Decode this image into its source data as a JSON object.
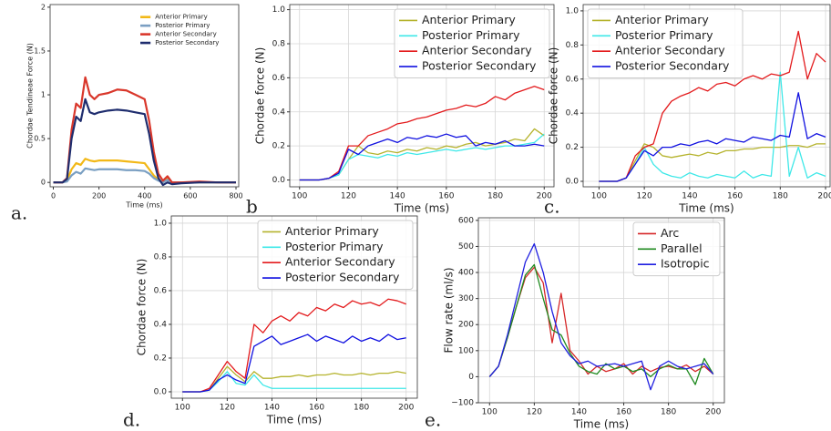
{
  "chart_data": [
    {
      "type": "line",
      "label": "a.",
      "xlabel": "Time (ms)",
      "ylabel": "Chordae Tendineae Force (N)",
      "xlim": [
        -14,
        812
      ],
      "ylim": [
        -0.05,
        2.03
      ],
      "xticks": [
        0,
        200,
        400,
        600,
        800
      ],
      "yticks": [
        0,
        0.5,
        1,
        1.5,
        2
      ],
      "grid": false,
      "legend": "upper right",
      "x": [
        0,
        40,
        60,
        80,
        100,
        120,
        140,
        160,
        180,
        200,
        240,
        280,
        320,
        360,
        400,
        420,
        440,
        460,
        480,
        500,
        520,
        560,
        640,
        720,
        800
      ],
      "series": [
        {
          "name": "Anterior Primary",
          "color": "#f2b817",
          "values": [
            0,
            0,
            0.02,
            0.15,
            0.22,
            0.2,
            0.27,
            0.25,
            0.24,
            0.25,
            0.25,
            0.25,
            0.24,
            0.23,
            0.22,
            0.15,
            0.08,
            0.03,
            0,
            0.05,
            0,
            0,
            0,
            0,
            0
          ]
        },
        {
          "name": "Posterior Primary",
          "color": "#7a9fc2",
          "values": [
            0,
            0,
            0.01,
            0.08,
            0.12,
            0.1,
            0.16,
            0.15,
            0.14,
            0.15,
            0.15,
            0.15,
            0.14,
            0.14,
            0.13,
            0.1,
            0.05,
            0.02,
            0,
            0.03,
            0,
            0,
            0,
            0,
            0
          ]
        },
        {
          "name": "Anterior Secondary",
          "color": "#d9372b",
          "values": [
            0,
            0,
            0.05,
            0.6,
            0.9,
            0.85,
            1.2,
            1.0,
            0.95,
            1.0,
            1.02,
            1.06,
            1.05,
            1.0,
            0.95,
            0.7,
            0.35,
            0.1,
            0.02,
            0.07,
            0,
            0,
            0.01,
            0,
            0
          ]
        },
        {
          "name": "Posterior Secondary",
          "color": "#1f2d6e",
          "values": [
            0,
            0,
            0.04,
            0.5,
            0.75,
            0.7,
            0.95,
            0.8,
            0.78,
            0.8,
            0.82,
            0.83,
            0.82,
            0.8,
            0.78,
            0.55,
            0.25,
            0.05,
            -0.03,
            0,
            -0.02,
            -0.01,
            0,
            0,
            0
          ]
        }
      ]
    },
    {
      "type": "line",
      "label": "b",
      "xlabel": "Time (ms)",
      "ylabel": "Chordae force (N)",
      "xlim": [
        96,
        204
      ],
      "ylim": [
        -0.04,
        1.03
      ],
      "xticks": [
        100,
        120,
        140,
        160,
        180,
        200
      ],
      "yticks": [
        {
          "value": 0,
          "label": "0.0"
        },
        0.2,
        0.4,
        0.6,
        0.8,
        {
          "value": 1,
          "label": "1.0"
        }
      ],
      "grid": true,
      "legend": "upper right",
      "x": [
        100,
        104,
        108,
        112,
        116,
        120,
        124,
        128,
        132,
        136,
        140,
        144,
        148,
        152,
        156,
        160,
        164,
        168,
        172,
        176,
        180,
        184,
        188,
        192,
        196,
        200
      ],
      "series": [
        {
          "name": "Anterior Primary",
          "color": "#b5b32d",
          "values": [
            0,
            0,
            0,
            0.01,
            0.03,
            0.12,
            0.2,
            0.16,
            0.15,
            0.17,
            0.16,
            0.18,
            0.17,
            0.19,
            0.18,
            0.2,
            0.19,
            0.21,
            0.22,
            0.2,
            0.21,
            0.22,
            0.24,
            0.23,
            0.3,
            0.26
          ]
        },
        {
          "name": "Posterior Primary",
          "color": "#3ee8e8",
          "values": [
            0,
            0,
            0,
            0.01,
            0.03,
            0.12,
            0.15,
            0.14,
            0.13,
            0.15,
            0.14,
            0.16,
            0.15,
            0.16,
            0.17,
            0.18,
            0.17,
            0.18,
            0.19,
            0.18,
            0.19,
            0.2,
            0.2,
            0.21,
            0.22,
            0.27
          ]
        },
        {
          "name": "Anterior Secondary",
          "color": "#e31a1c",
          "values": [
            0,
            0,
            0,
            0.01,
            0.05,
            0.2,
            0.2,
            0.26,
            0.28,
            0.3,
            0.33,
            0.34,
            0.36,
            0.37,
            0.39,
            0.41,
            0.42,
            0.44,
            0.43,
            0.45,
            0.49,
            0.47,
            0.51,
            0.53,
            0.55,
            0.53
          ]
        },
        {
          "name": "Posterior Secondary",
          "color": "#1010e0",
          "values": [
            0,
            0,
            0,
            0.01,
            0.04,
            0.18,
            0.15,
            0.2,
            0.22,
            0.24,
            0.22,
            0.25,
            0.24,
            0.26,
            0.25,
            0.27,
            0.25,
            0.26,
            0.2,
            0.22,
            0.21,
            0.23,
            0.2,
            0.2,
            0.21,
            0.2
          ]
        }
      ]
    },
    {
      "type": "line",
      "label": "c.",
      "xlabel": "Time (ms)",
      "ylabel": "Chordae force (N)",
      "xlim": [
        93,
        202
      ],
      "ylim": [
        -0.032,
        1.037
      ],
      "xticks": [
        100,
        120,
        140,
        160,
        180,
        200
      ],
      "yticks": [
        {
          "value": 0,
          "label": "0.0"
        },
        0.2,
        0.4,
        0.6,
        0.8,
        {
          "value": 1,
          "label": "1.0"
        }
      ],
      "grid": true,
      "legend": "upper left",
      "x": [
        100,
        104,
        108,
        112,
        116,
        120,
        124,
        128,
        132,
        136,
        140,
        144,
        148,
        152,
        156,
        160,
        164,
        168,
        172,
        176,
        180,
        184,
        188,
        192,
        196,
        200
      ],
      "series": [
        {
          "name": "Anterior Primary",
          "color": "#b5b32d",
          "values": [
            0,
            0,
            0,
            0.02,
            0.12,
            0.22,
            0.2,
            0.15,
            0.14,
            0.15,
            0.16,
            0.15,
            0.17,
            0.16,
            0.18,
            0.18,
            0.19,
            0.19,
            0.2,
            0.2,
            0.2,
            0.21,
            0.21,
            0.2,
            0.22,
            0.22
          ]
        },
        {
          "name": "Posterior Primary",
          "color": "#3ee8e8",
          "values": [
            0,
            0,
            0,
            0.02,
            0.1,
            0.2,
            0.1,
            0.05,
            0.03,
            0.02,
            0.05,
            0.03,
            0.02,
            0.04,
            0.03,
            0.02,
            0.06,
            0.02,
            0.04,
            0.03,
            0.64,
            0.03,
            0.2,
            0.02,
            0.05,
            0.03
          ]
        },
        {
          "name": "Anterior Secondary",
          "color": "#e31a1c",
          "values": [
            0,
            0,
            0,
            0.02,
            0.15,
            0.2,
            0.22,
            0.4,
            0.47,
            0.5,
            0.52,
            0.55,
            0.53,
            0.57,
            0.58,
            0.56,
            0.6,
            0.62,
            0.6,
            0.63,
            0.62,
            0.64,
            0.88,
            0.6,
            0.75,
            0.7
          ]
        },
        {
          "name": "Posterior Secondary",
          "color": "#1010e0",
          "values": [
            0,
            0,
            0,
            0.02,
            0.1,
            0.18,
            0.15,
            0.2,
            0.2,
            0.22,
            0.21,
            0.23,
            0.24,
            0.22,
            0.25,
            0.24,
            0.23,
            0.26,
            0.25,
            0.24,
            0.27,
            0.26,
            0.52,
            0.25,
            0.28,
            0.26
          ]
        }
      ]
    },
    {
      "type": "line",
      "label": "d.",
      "xlabel": "Time (ms)",
      "ylabel": "Chordae force (N)",
      "xlim": [
        95,
        205
      ],
      "ylim": [
        -0.038,
        1.043
      ],
      "xticks": [
        100,
        120,
        140,
        160,
        180,
        200
      ],
      "yticks": [
        {
          "value": 0,
          "label": "0.0"
        },
        0.2,
        0.4,
        0.6,
        0.8,
        {
          "value": 1,
          "label": "1.0"
        }
      ],
      "grid": true,
      "legend": "upper right",
      "x": [
        100,
        104,
        108,
        112,
        116,
        120,
        124,
        128,
        132,
        136,
        140,
        144,
        148,
        152,
        156,
        160,
        164,
        168,
        172,
        176,
        180,
        184,
        188,
        192,
        196,
        200
      ],
      "series": [
        {
          "name": "Anterior Primary",
          "color": "#b5b32d",
          "values": [
            0,
            0,
            0,
            0.01,
            0.08,
            0.15,
            0.1,
            0.06,
            0.12,
            0.08,
            0.08,
            0.09,
            0.09,
            0.1,
            0.09,
            0.1,
            0.1,
            0.11,
            0.1,
            0.1,
            0.11,
            0.1,
            0.11,
            0.11,
            0.12,
            0.11
          ]
        },
        {
          "name": "Posterior Primary",
          "color": "#3ee8e8",
          "values": [
            0,
            0,
            0,
            0.01,
            0.06,
            0.12,
            0.05,
            0.04,
            0.1,
            0.04,
            0.02,
            0.02,
            0.02,
            0.02,
            0.02,
            0.02,
            0.02,
            0.02,
            0.02,
            0.02,
            0.02,
            0.02,
            0.02,
            0.02,
            0.02,
            0.02
          ]
        },
        {
          "name": "Anterior Secondary",
          "color": "#e31a1c",
          "values": [
            0,
            0,
            0,
            0.02,
            0.1,
            0.18,
            0.12,
            0.08,
            0.4,
            0.35,
            0.42,
            0.45,
            0.42,
            0.47,
            0.45,
            0.5,
            0.48,
            0.52,
            0.5,
            0.54,
            0.52,
            0.53,
            0.51,
            0.55,
            0.54,
            0.52
          ]
        },
        {
          "name": "Posterior Secondary",
          "color": "#1010e0",
          "values": [
            0,
            0,
            0,
            0.01,
            0.07,
            0.1,
            0.07,
            0.05,
            0.27,
            0.3,
            0.33,
            0.28,
            0.3,
            0.32,
            0.34,
            0.3,
            0.33,
            0.31,
            0.29,
            0.33,
            0.3,
            0.32,
            0.3,
            0.34,
            0.31,
            0.32
          ]
        }
      ]
    },
    {
      "type": "line",
      "label": "e.",
      "xlabel": "Time (ms)",
      "ylabel": "Flow rate (ml/s)",
      "xlim": [
        95,
        205
      ],
      "ylim": [
        -100,
        610
      ],
      "xticks": [
        100,
        120,
        140,
        160,
        180,
        200
      ],
      "yticks": [
        {
          "value": -100,
          "label": "−100"
        },
        0,
        100,
        200,
        300,
        400,
        500,
        600
      ],
      "grid": true,
      "legend": "upper right",
      "x": [
        100,
        104,
        108,
        112,
        116,
        120,
        124,
        128,
        132,
        136,
        140,
        144,
        148,
        152,
        156,
        160,
        164,
        168,
        172,
        176,
        180,
        184,
        188,
        192,
        196,
        200
      ],
      "series": [
        {
          "name": "Arc",
          "color": "#d62728",
          "values": [
            0,
            40,
            150,
            270,
            380,
            420,
            360,
            130,
            320,
            100,
            60,
            10,
            40,
            20,
            30,
            50,
            10,
            40,
            20,
            35,
            40,
            30,
            45,
            20,
            40,
            10
          ]
        },
        {
          "name": "Parallel",
          "color": "#1f8a1f",
          "values": [
            0,
            40,
            150,
            270,
            390,
            430,
            300,
            180,
            160,
            90,
            40,
            20,
            10,
            50,
            30,
            40,
            20,
            30,
            0,
            30,
            45,
            30,
            30,
            -30,
            70,
            10
          ]
        },
        {
          "name": "Isotropic",
          "color": "#1f1fe0",
          "values": [
            0,
            40,
            160,
            300,
            440,
            510,
            400,
            250,
            130,
            80,
            50,
            60,
            40,
            45,
            50,
            40,
            50,
            60,
            -50,
            40,
            60,
            40,
            30,
            40,
            50,
            10
          ]
        }
      ]
    }
  ]
}
